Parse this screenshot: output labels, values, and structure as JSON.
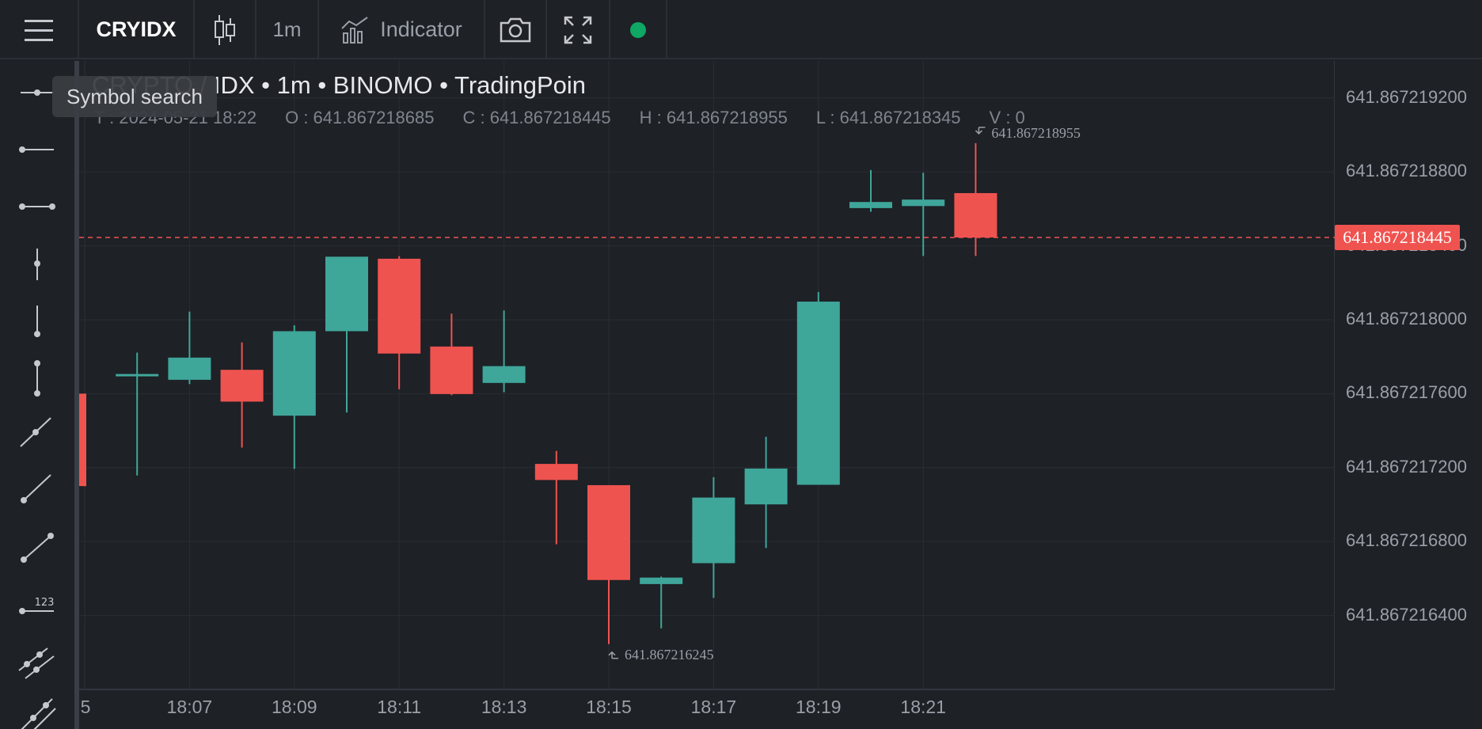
{
  "toolbar": {
    "menu_icon": "hamburger-menu-icon",
    "symbol": "CRYIDX",
    "chart_type_icon": "candlestick-icon",
    "interval": "1m",
    "indicator_icon": "indicator-chart-icon",
    "indicator_label": "Indicator",
    "camera_icon": "camera-icon",
    "fullscreen_icon": "fullscreen-icon",
    "status_color": "#0ea864"
  },
  "tooltip": {
    "text": "Symbol search"
  },
  "legend": {
    "title": "CRYPTO / IDX • 1m • BINOMO • TradingPoin",
    "time": "T : 2024-05-21 18:22",
    "open": "O : 641.867218685",
    "close": "C : 641.867218445",
    "high": "H : 641.867218955",
    "low": "L : 641.867218345",
    "volume": "V : 0"
  },
  "left_tools": [
    "horizontal-ray-icon",
    "horizontal-line-left-icon",
    "horizontal-segment-icon",
    "vertical-line-icon",
    "vertical-ray-icon",
    "vertical-segment-icon",
    "ray-line-icon",
    "trend-line-icon",
    "segment-line-icon",
    "price-label-icon",
    "parallel-channel-icon",
    "multi-point-line-icon"
  ],
  "colors": {
    "up": "#3fa69a",
    "down": "#ef5350",
    "background": "#1e2126",
    "grid": "#2a2e35"
  },
  "chart_data": {
    "type": "candlestick",
    "ylim": [
      641.867216,
      641.8672194
    ],
    "y_ticks": [
      "641.867219200",
      "641.867218800",
      "641.867218400",
      "641.867218000",
      "641.867217600",
      "641.867217200",
      "641.867216800",
      "641.867216400"
    ],
    "x_ticks": [
      "5",
      "18:07",
      "18:09",
      "18:11",
      "18:13",
      "18:15",
      "18:17",
      "18:19",
      "18:21"
    ],
    "last_price": "641.867218445",
    "high_marker": "641.867218955",
    "low_marker": "641.867216245",
    "candles": [
      {
        "time": "18:05",
        "o": 641.8672176,
        "h": 641.8672176,
        "l": 641.8672171,
        "c": 641.8672171
      },
      {
        "time": "18:06",
        "o": 641.8672177,
        "h": 641.867217822,
        "l": 641.867217157,
        "c": 641.8672177
      },
      {
        "time": "18:07",
        "o": 641.867217675,
        "h": 641.867218044,
        "l": 641.867217652,
        "c": 641.867217795
      },
      {
        "time": "18:08",
        "o": 641.867217729,
        "h": 641.867217877,
        "l": 641.867217308,
        "c": 641.867217557
      },
      {
        "time": "18:09",
        "o": 641.867217481,
        "h": 641.86721797,
        "l": 641.867217193,
        "c": 641.867217938
      },
      {
        "time": "18:10",
        "o": 641.867217938,
        "h": 641.867217938,
        "l": 641.867217498,
        "c": 641.867218341
      },
      {
        "time": "18:11",
        "o": 641.86721833,
        "h": 641.867218344,
        "l": 641.867217624,
        "c": 641.867217817
      },
      {
        "time": "18:12",
        "o": 641.867217855,
        "h": 641.867218033,
        "l": 641.867217592,
        "c": 641.867217598
      },
      {
        "time": "18:13",
        "o": 641.867217658,
        "h": 641.86721805,
        "l": 641.867217608,
        "c": 641.867217749
      },
      {
        "time": "18:14",
        "o": 641.86721722,
        "h": 641.86721729,
        "l": 641.867216785,
        "c": 641.867217133
      },
      {
        "time": "18:15",
        "o": 641.867217105,
        "h": 641.867217105,
        "l": 641.867216245,
        "c": 641.867216592
      },
      {
        "time": "18:16",
        "o": 641.86721657,
        "h": 641.86721661,
        "l": 641.86721633,
        "c": 641.867216605
      },
      {
        "time": "18:17",
        "o": 641.867216683,
        "h": 641.867217148,
        "l": 641.867216495,
        "c": 641.867217038
      },
      {
        "time": "18:18",
        "o": 641.867217001,
        "h": 641.867217367,
        "l": 641.867216765,
        "c": 641.867217195
      },
      {
        "time": "18:19",
        "o": 641.867217107,
        "h": 641.86721815,
        "l": 641.867217107,
        "c": 641.867218098
      },
      {
        "time": "18:20",
        "o": 641.867218604,
        "h": 641.86721881,
        "l": 641.867218584,
        "c": 641.867218637
      },
      {
        "time": "18:21",
        "o": 641.867218615,
        "h": 641.867218795,
        "l": 641.867218345,
        "c": 641.86721865
      },
      {
        "time": "18:22",
        "o": 641.867218685,
        "h": 641.867218955,
        "l": 641.867218345,
        "c": 641.867218445
      }
    ]
  }
}
